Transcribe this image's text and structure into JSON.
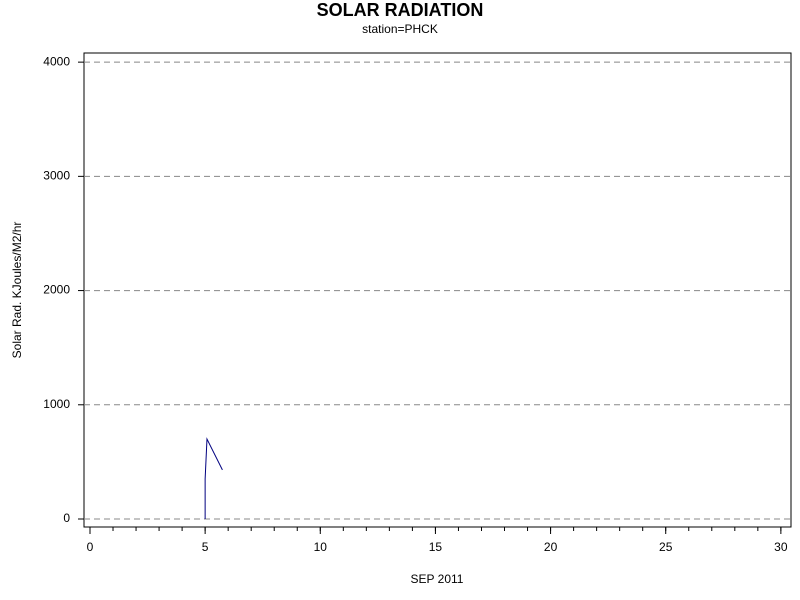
{
  "chart_data": {
    "type": "line",
    "title": "SOLAR RADIATION",
    "subtitle": "station=PHCK",
    "x_label": "SEP 2011",
    "y_label": "Solar Rad. KJoules/M2/hr",
    "x": [
      5.0,
      5.0,
      5.08,
      5.75
    ],
    "series": [
      {
        "name": "PHCK",
        "color": "#000080",
        "values": [
          0,
          350,
          700,
          430
        ]
      }
    ],
    "xlim": [
      -0.26,
      30.44
    ],
    "ylim": [
      -70,
      4080
    ],
    "xticks": [
      0,
      5,
      10,
      15,
      20,
      25,
      30
    ],
    "xminorticks": [
      0,
      1,
      2,
      3,
      4,
      5,
      6,
      7,
      8,
      9,
      10,
      11,
      12,
      13,
      14,
      15,
      16,
      17,
      18,
      19,
      20,
      21,
      22,
      23,
      24,
      25,
      26,
      27,
      28,
      29,
      30
    ],
    "yticks": [
      0,
      1000,
      2000,
      3000,
      4000
    ],
    "grid": true
  }
}
